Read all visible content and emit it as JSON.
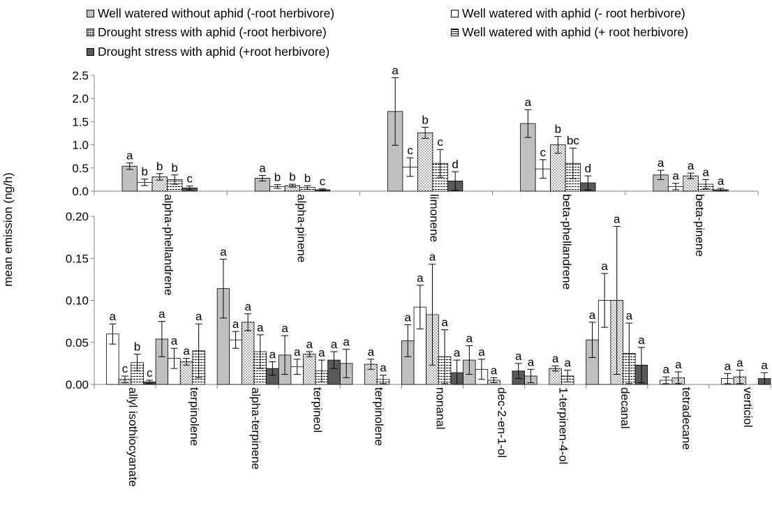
{
  "legend": [
    {
      "label": "Well watered without aphid (-root herbivore)",
      "fill": "gray"
    },
    {
      "label": "Well watered with aphid (- root herbivore)",
      "fill": "white"
    },
    {
      "label": "Drought stress with aphid (-root herbivore)",
      "fill": "dots"
    },
    {
      "label": "Well watered with aphid (+ root herbivore)",
      "fill": "hatch"
    },
    {
      "label": "Drought stress with aphid (+root herbivore)",
      "fill": "dark"
    }
  ],
  "colors": {
    "gray": "#c0c0c0",
    "white": "#ffffff",
    "dark": "#595959",
    "axis": "#808080"
  },
  "ylabel": "mean emission (ng/h)",
  "chart_data": [
    {
      "type": "bar",
      "panel": "top",
      "ylim": [
        0,
        2.5
      ],
      "yticks": [
        "0.0",
        "0.5",
        "1.0",
        "1.5",
        "2.0",
        "2.5"
      ],
      "categories": [
        "alpha-phellandrene",
        "alpha-pinene",
        "limonene",
        "beta-phellandrene",
        "beta-pinene"
      ],
      "series": [
        {
          "name": "Well watered without aphid (-root herbivore)",
          "values": [
            0.54,
            0.28,
            1.72,
            1.46,
            0.35
          ],
          "errors": [
            0.07,
            0.06,
            0.73,
            0.3,
            0.1
          ],
          "letters": [
            "a",
            "a",
            "a",
            "a",
            "a"
          ]
        },
        {
          "name": "Well watered with aphid (- root herbivore)",
          "values": [
            0.19,
            0.1,
            0.52,
            0.48,
            0.1
          ],
          "errors": [
            0.07,
            0.04,
            0.2,
            0.2,
            0.07
          ],
          "letters": [
            "b",
            "b",
            "c",
            "c",
            "a"
          ]
        },
        {
          "name": "Drought stress with aphid (-root herbivore)",
          "values": [
            0.31,
            0.12,
            1.26,
            1.0,
            0.33
          ],
          "errors": [
            0.07,
            0.03,
            0.12,
            0.18,
            0.06
          ],
          "letters": [
            "b",
            "b",
            "b",
            "b",
            "a"
          ]
        },
        {
          "name": "Well watered with aphid (+ root herbivore)",
          "values": [
            0.25,
            0.08,
            0.6,
            0.6,
            0.15
          ],
          "errors": [
            0.1,
            0.04,
            0.3,
            0.33,
            0.1
          ],
          "letters": [
            "b",
            "b",
            "c",
            "bc",
            "a"
          ]
        },
        {
          "name": "Drought stress with aphid (+root herbivore)",
          "values": [
            0.07,
            0.03,
            0.22,
            0.18,
            0.03
          ],
          "errors": [
            0.04,
            0.02,
            0.2,
            0.15,
            0.03
          ],
          "letters": [
            "c",
            "c",
            "d",
            "d",
            "a"
          ]
        }
      ]
    },
    {
      "type": "bar",
      "panel": "bottom",
      "ylim": [
        0,
        0.2
      ],
      "yticks": [
        "0.00",
        "0.05",
        "0.10",
        "0.15",
        "0.20"
      ],
      "categories": [
        "allyl isothiocyanate",
        "terpinolene",
        "alpha-terpinene",
        "terpineol",
        "terpinolene",
        "nonanal",
        "dec-2-en-1-ol",
        "1-terpinen-4-ol",
        "decanal",
        "tetradecane",
        "verticiol"
      ],
      "series": [
        {
          "name": "Well watered without aphid (-root herbivore)",
          "values": [
            null,
            0.054,
            0.114,
            0.035,
            0.025,
            0.052,
            0.029,
            0.01,
            0.053,
            null,
            null
          ],
          "errors": [
            null,
            0.021,
            0.035,
            0.023,
            0.017,
            0.019,
            0.017,
            0.008,
            0.021,
            null,
            null
          ],
          "letters": [
            "",
            "a",
            "a",
            "a",
            "a",
            "a",
            "a",
            "a",
            "a",
            "",
            ""
          ]
        },
        {
          "name": "Well watered with aphid (- root herbivore)",
          "values": [
            0.06,
            0.031,
            0.053,
            0.021,
            null,
            0.092,
            0.018,
            null,
            0.1,
            0.005,
            0.007
          ],
          "errors": [
            0.012,
            0.012,
            0.01,
            0.009,
            null,
            0.026,
            0.012,
            null,
            0.032,
            0.004,
            0.006
          ],
          "letters": [
            "a",
            "a",
            "a",
            "a",
            "",
            "a",
            "a",
            "",
            "a",
            "a",
            "a"
          ]
        },
        {
          "name": "Drought stress with aphid (-root herbivore)",
          "values": [
            0.006,
            0.027,
            0.074,
            0.036,
            0.024,
            0.083,
            0.005,
            0.019,
            0.1,
            0.008,
            0.009
          ],
          "errors": [
            0.004,
            0.004,
            0.01,
            0.003,
            0.006,
            0.06,
            0.003,
            0.003,
            0.088,
            0.007,
            0.008
          ],
          "letters": [
            "c",
            "a",
            "a",
            "a",
            "a",
            "a",
            "a",
            "a",
            "a",
            "a",
            "a"
          ]
        },
        {
          "name": "Well watered with aphid (+ root herbivore)",
          "values": [
            0.026,
            0.04,
            0.039,
            0.016,
            0.006,
            0.033,
            null,
            0.01,
            0.037,
            null,
            null
          ],
          "errors": [
            0.01,
            0.032,
            0.02,
            0.013,
            0.005,
            0.032,
            null,
            0.007,
            0.036,
            null,
            null
          ],
          "letters": [
            "b",
            "a",
            "a",
            "a",
            "a",
            "a",
            "",
            "a",
            "a",
            "",
            ""
          ]
        },
        {
          "name": "Drought stress with aphid (+root herbivore)",
          "values": [
            0.003,
            null,
            0.019,
            0.029,
            null,
            0.014,
            0.016,
            null,
            0.023,
            null,
            0.007
          ],
          "errors": [
            0.002,
            null,
            0.008,
            0.01,
            null,
            0.015,
            0.009,
            null,
            0.021,
            null,
            0.007
          ],
          "letters": [
            "c",
            "",
            "a",
            "a",
            "",
            "a",
            "a",
            "",
            "a",
            "",
            "a"
          ]
        }
      ]
    }
  ]
}
